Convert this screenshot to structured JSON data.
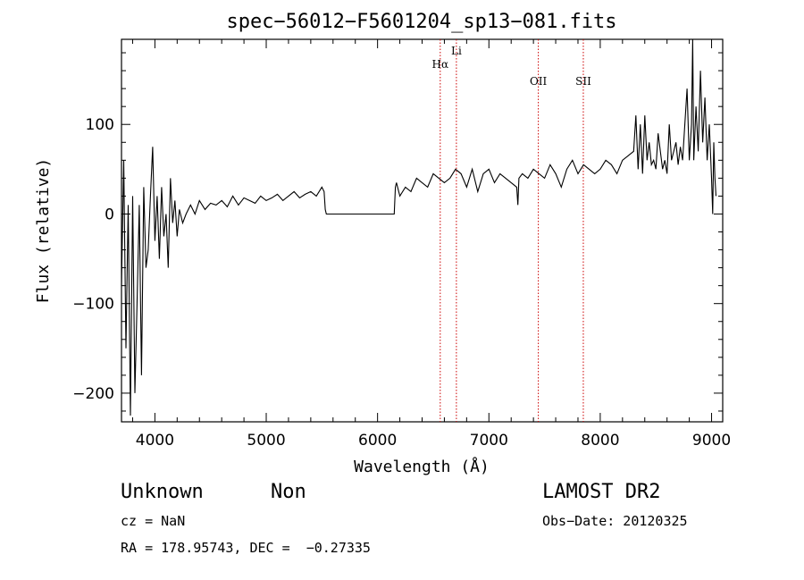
{
  "chart_data": {
    "type": "line",
    "title": "spec−56012−F5601204_sp13−081.fits",
    "xlabel": "Wavelength (Å)",
    "ylabel": "Flux (relative)",
    "xlim": [
      3700,
      9100
    ],
    "ylim": [
      -232,
      195
    ],
    "x_ticks": [
      4000,
      5000,
      6000,
      7000,
      8000,
      9000
    ],
    "y_ticks": [
      -200,
      -100,
      0,
      100
    ],
    "y_tick_labels": [
      "−200",
      "−100",
      "0",
      "100"
    ],
    "grid": false,
    "series": [
      {
        "color": "#000000",
        "x": [
          3700,
          3720,
          3740,
          3760,
          3780,
          3800,
          3820,
          3840,
          3860,
          3880,
          3900,
          3920,
          3940,
          3960,
          3980,
          4000,
          4020,
          4040,
          4060,
          4080,
          4100,
          4120,
          4140,
          4160,
          4180,
          4200,
          4220,
          4250,
          4280,
          4320,
          4360,
          4400,
          4450,
          4500,
          4550,
          4600,
          4650,
          4700,
          4750,
          4800,
          4850,
          4900,
          4950,
          5000,
          5050,
          5100,
          5150,
          5200,
          5250,
          5300,
          5350,
          5400,
          5450,
          5500,
          5520,
          5530,
          5540,
          6150,
          6160,
          6170,
          6200,
          6250,
          6300,
          6350,
          6400,
          6450,
          6500,
          6550,
          6600,
          6650,
          6700,
          6750,
          6800,
          6850,
          6900,
          6950,
          7000,
          7050,
          7100,
          7150,
          7200,
          7250,
          7260,
          7270,
          7300,
          7350,
          7400,
          7450,
          7500,
          7550,
          7600,
          7650,
          7700,
          7750,
          7800,
          7850,
          7900,
          7950,
          8000,
          8050,
          8100,
          8150,
          8200,
          8250,
          8300,
          8320,
          8340,
          8360,
          8380,
          8400,
          8420,
          8440,
          8460,
          8480,
          8500,
          8520,
          8540,
          8560,
          8580,
          8600,
          8620,
          8640,
          8660,
          8680,
          8700,
          8720,
          8740,
          8760,
          8780,
          8800,
          8820,
          8830,
          8840,
          8860,
          8880,
          8900,
          8920,
          8940,
          8960,
          8980,
          9000,
          9010,
          9020,
          9030,
          9040
        ],
        "y": [
          -80,
          60,
          -150,
          10,
          -225,
          20,
          -200,
          -100,
          10,
          -180,
          30,
          -60,
          -40,
          20,
          75,
          -30,
          20,
          -50,
          30,
          -25,
          0,
          -60,
          40,
          -10,
          15,
          -25,
          5,
          -10,
          0,
          10,
          0,
          15,
          5,
          12,
          10,
          15,
          8,
          20,
          10,
          18,
          15,
          12,
          20,
          15,
          18,
          22,
          15,
          20,
          25,
          18,
          22,
          25,
          20,
          30,
          25,
          5,
          0,
          0,
          30,
          35,
          20,
          30,
          25,
          40,
          35,
          30,
          45,
          40,
          35,
          40,
          50,
          45,
          30,
          50,
          25,
          45,
          50,
          35,
          45,
          40,
          35,
          30,
          10,
          40,
          45,
          40,
          50,
          45,
          40,
          55,
          45,
          30,
          50,
          60,
          45,
          55,
          50,
          45,
          50,
          60,
          55,
          45,
          60,
          65,
          70,
          110,
          50,
          100,
          45,
          110,
          60,
          80,
          55,
          60,
          50,
          90,
          70,
          50,
          60,
          45,
          100,
          60,
          70,
          80,
          55,
          75,
          60,
          100,
          140,
          60,
          100,
          195,
          60,
          120,
          70,
          160,
          80,
          130,
          60,
          100,
          40,
          0,
          80,
          40,
          20
        ],
        "name": ""
      }
    ],
    "annotations": [
      {
        "label": "Hα",
        "x": 6563
      },
      {
        "label": "Li",
        "x": 6708
      },
      {
        "label": "OII",
        "x": 7444
      },
      {
        "label": "SII",
        "x": 7848
      }
    ],
    "annotation_color": "#cc0000"
  },
  "info": {
    "class": "Unknown",
    "subclass": "Non",
    "survey": "LAMOST DR2",
    "cz": "cz = NaN",
    "obs_date": "Obs−Date: 20120325",
    "coords": "RA = 178.95743, DEC =  −0.27335"
  }
}
